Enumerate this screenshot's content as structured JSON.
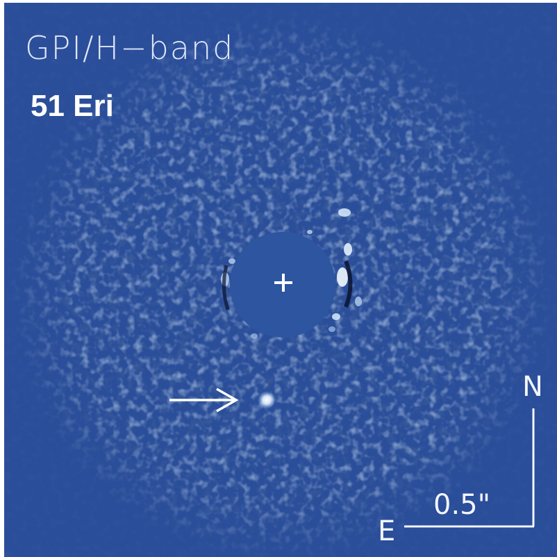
{
  "image": {
    "instrument_label": "GPI/H−band",
    "target_label": "51 Eri",
    "compass": {
      "north": "N",
      "east": "E"
    },
    "scale_bar_label": "0.5\"",
    "colors": {
      "background": "#2b4e9a",
      "mask": "#2d55a0",
      "speckle": "#9fc4ec",
      "text": "#ffffff"
    },
    "icons": {
      "star_marker": "plus-icon",
      "planet_pointer": "arrow-right-icon"
    }
  }
}
